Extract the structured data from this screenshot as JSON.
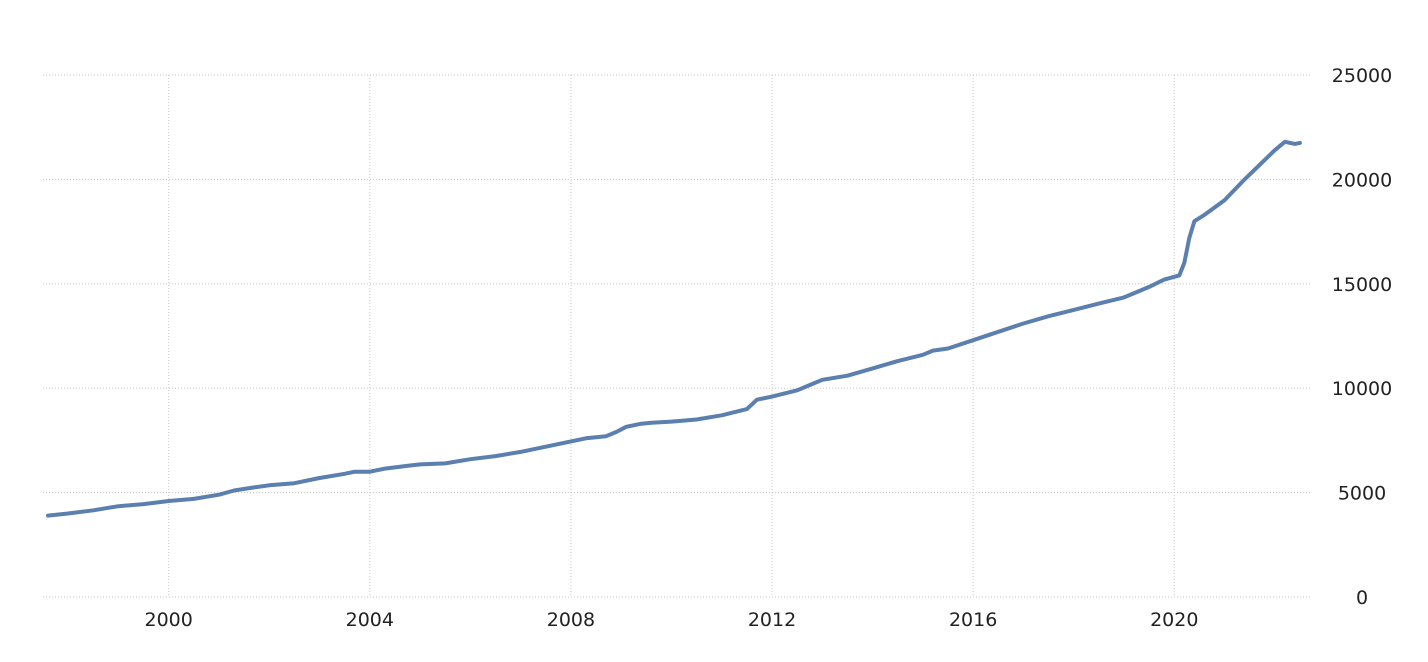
{
  "chart_data": {
    "type": "line",
    "title": "",
    "xlabel": "",
    "ylabel": "",
    "xlim": [
      1997.5,
      2022.7
    ],
    "ylim": [
      0,
      25000
    ],
    "grid": true,
    "legend": "none",
    "x_ticks": [
      {
        "value": 2000,
        "label": "2000"
      },
      {
        "value": 2004,
        "label": "2004"
      },
      {
        "value": 2008,
        "label": "2008"
      },
      {
        "value": 2012,
        "label": "2012"
      },
      {
        "value": 2016,
        "label": "2016"
      },
      {
        "value": 2020,
        "label": "2020"
      }
    ],
    "y_ticks": [
      {
        "value": 0,
        "label": "0"
      },
      {
        "value": 5000,
        "label": "5000"
      },
      {
        "value": 10000,
        "label": "10000"
      },
      {
        "value": 15000,
        "label": "15000"
      },
      {
        "value": 20000,
        "label": "20000"
      },
      {
        "value": 25000,
        "label": "25000"
      }
    ],
    "series": [
      {
        "color": "#5b7fae",
        "points": [
          [
            1997.6,
            3900
          ],
          [
            1998.0,
            4000
          ],
          [
            1998.5,
            4150
          ],
          [
            1999.0,
            4350
          ],
          [
            1999.5,
            4450
          ],
          [
            2000.0,
            4600
          ],
          [
            2000.5,
            4700
          ],
          [
            2001.0,
            4900
          ],
          [
            2001.3,
            5100
          ],
          [
            2001.7,
            5250
          ],
          [
            2002.0,
            5350
          ],
          [
            2002.5,
            5450
          ],
          [
            2003.0,
            5700
          ],
          [
            2003.5,
            5900
          ],
          [
            2003.7,
            6000
          ],
          [
            2004.0,
            6000
          ],
          [
            2004.3,
            6150
          ],
          [
            2004.8,
            6300
          ],
          [
            2005.0,
            6350
          ],
          [
            2005.5,
            6400
          ],
          [
            2006.0,
            6600
          ],
          [
            2006.5,
            6750
          ],
          [
            2007.0,
            6950
          ],
          [
            2007.5,
            7200
          ],
          [
            2008.0,
            7450
          ],
          [
            2008.3,
            7600
          ],
          [
            2008.7,
            7700
          ],
          [
            2008.9,
            7900
          ],
          [
            2009.1,
            8150
          ],
          [
            2009.4,
            8300
          ],
          [
            2009.6,
            8350
          ],
          [
            2010.0,
            8400
          ],
          [
            2010.5,
            8500
          ],
          [
            2011.0,
            8700
          ],
          [
            2011.5,
            9000
          ],
          [
            2011.7,
            9450
          ],
          [
            2012.0,
            9600
          ],
          [
            2012.5,
            9900
          ],
          [
            2012.8,
            10200
          ],
          [
            2013.0,
            10400
          ],
          [
            2013.5,
            10600
          ],
          [
            2014.0,
            10950
          ],
          [
            2014.5,
            11300
          ],
          [
            2015.0,
            11600
          ],
          [
            2015.2,
            11800
          ],
          [
            2015.5,
            11900
          ],
          [
            2016.0,
            12300
          ],
          [
            2016.5,
            12700
          ],
          [
            2017.0,
            13100
          ],
          [
            2017.5,
            13450
          ],
          [
            2018.0,
            13750
          ],
          [
            2018.5,
            14050
          ],
          [
            2019.0,
            14350
          ],
          [
            2019.5,
            14850
          ],
          [
            2019.8,
            15200
          ],
          [
            2020.1,
            15400
          ],
          [
            2020.2,
            16000
          ],
          [
            2020.3,
            17200
          ],
          [
            2020.4,
            18000
          ],
          [
            2020.6,
            18300
          ],
          [
            2021.0,
            19000
          ],
          [
            2021.4,
            20000
          ],
          [
            2021.7,
            20700
          ],
          [
            2022.0,
            21400
          ],
          [
            2022.2,
            21800
          ],
          [
            2022.4,
            21700
          ],
          [
            2022.5,
            21750
          ]
        ]
      }
    ]
  }
}
